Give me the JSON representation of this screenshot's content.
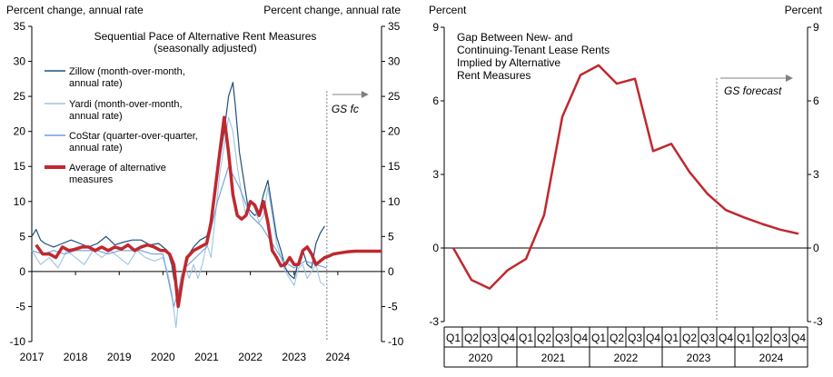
{
  "colors": {
    "zillow": "#1f4e79",
    "yardi": "#9dc3e6",
    "costar": "#6f9fd8",
    "average": "#c0282e",
    "forecast_line": "#808080",
    "axis": "#000000"
  },
  "chart_data": [
    {
      "id": "left",
      "type": "line",
      "title": "Sequential Pace of Alternative Rent Measures",
      "subtitle": "(seasonally adjusted)",
      "ylabel_left": "Percent change, annual rate",
      "ylabel_right": "Percent change, annual rate",
      "ylim": [
        -10,
        35
      ],
      "yticks": [
        -10,
        -5,
        0,
        5,
        10,
        15,
        20,
        25,
        30,
        35
      ],
      "xlim": [
        2017,
        2025
      ],
      "xticks": [
        2017,
        2018,
        2019,
        2020,
        2021,
        2022,
        2023,
        2024
      ],
      "forecast_x": 2023.75,
      "forecast_label": "GS fc",
      "series": [
        {
          "name": "Zillow (month-over-month,",
          "name2": "annual rate)",
          "key": "zillow",
          "x": [
            2017,
            2017.1,
            2017.2,
            2017.3,
            2017.5,
            2017.7,
            2017.9,
            2018.1,
            2018.3,
            2018.5,
            2018.7,
            2018.9,
            2019.1,
            2019.3,
            2019.5,
            2019.7,
            2019.9,
            2020.0,
            2020.1,
            2020.2,
            2020.25,
            2020.35,
            2020.5,
            2020.6,
            2020.7,
            2020.85,
            2021.0,
            2021.1,
            2021.2,
            2021.3,
            2021.4,
            2021.5,
            2021.55,
            2021.6,
            2021.65,
            2021.75,
            2021.85,
            2021.95,
            2022.1,
            2022.2,
            2022.3,
            2022.4,
            2022.5,
            2022.6,
            2022.7,
            2022.8,
            2022.9,
            2023.0,
            2023.1,
            2023.2,
            2023.3,
            2023.4,
            2023.5,
            2023.6,
            2023.7
          ],
          "values": [
            5,
            6,
            4.5,
            4,
            3.5,
            4,
            4.5,
            4,
            3.5,
            4,
            5,
            3.8,
            4.2,
            4.5,
            4.5,
            3.8,
            4,
            3.5,
            3,
            1,
            -1,
            -3,
            0,
            2.5,
            3.5,
            4.5,
            5,
            7,
            11,
            16,
            20,
            25,
            26,
            27,
            24,
            17,
            13,
            9,
            8,
            8.5,
            11,
            13,
            9,
            5,
            3,
            0.5,
            -0.5,
            -1,
            1.5,
            3,
            1,
            0.5,
            4,
            5.5,
            6.5
          ]
        },
        {
          "name": "Yardi (month-over-month,",
          "name2": "annual rate)",
          "key": "yardi",
          "x": [
            2017,
            2017.2,
            2017.4,
            2017.6,
            2017.8,
            2018.0,
            2018.2,
            2018.4,
            2018.6,
            2018.8,
            2019.0,
            2019.2,
            2019.4,
            2019.6,
            2019.8,
            2020.0,
            2020.1,
            2020.2,
            2020.3,
            2020.4,
            2020.5,
            2020.6,
            2020.7,
            2020.8,
            2020.9,
            2021.0,
            2021.1,
            2021.2,
            2021.3,
            2021.4,
            2021.5,
            2021.6,
            2021.7,
            2021.8,
            2021.9,
            2022.0,
            2022.1,
            2022.2,
            2022.3,
            2022.4,
            2022.5,
            2022.6,
            2022.7,
            2022.8,
            2022.9,
            2023.0,
            2023.1,
            2023.2,
            2023.3,
            2023.4,
            2023.5,
            2023.6,
            2023.7
          ],
          "values": [
            3,
            1,
            2,
            0.5,
            3,
            2,
            1,
            3,
            2,
            3,
            2,
            1,
            3,
            2,
            1.5,
            2,
            0,
            -3,
            -8,
            -1,
            1,
            -1,
            1,
            -1,
            1,
            4,
            2,
            8,
            14,
            18,
            22,
            20,
            15,
            11,
            8,
            10,
            9,
            7,
            8,
            12,
            8,
            4,
            2,
            0,
            -1,
            -2,
            0.5,
            1,
            -1,
            0,
            1,
            -1.5,
            -2
          ]
        },
        {
          "name": "CoStar (quarter-over-quarter,",
          "name2": "annual rate)",
          "key": "costar",
          "x": [
            2017,
            2017.25,
            2017.5,
            2017.75,
            2018,
            2018.25,
            2018.5,
            2018.75,
            2019,
            2019.25,
            2019.5,
            2019.75,
            2020,
            2020.25,
            2020.5,
            2020.75,
            2021,
            2021.25,
            2021.5,
            2021.75,
            2022,
            2022.25,
            2022.5,
            2022.75,
            2023,
            2023.25,
            2023.5,
            2023.75
          ],
          "values": [
            3,
            2.5,
            3,
            2.5,
            3,
            3,
            3,
            2.5,
            3,
            3,
            3,
            2.5,
            2.5,
            -5,
            0.5,
            2,
            3.5,
            10,
            15,
            12,
            8,
            6.5,
            4,
            1.5,
            0.5,
            1.5,
            1,
            0.5
          ]
        },
        {
          "name": "Average of alternative",
          "name2": "measures",
          "key": "average",
          "x": [
            2017.1,
            2017.25,
            2017.4,
            2017.55,
            2017.7,
            2017.85,
            2018.0,
            2018.15,
            2018.3,
            2018.45,
            2018.6,
            2018.75,
            2018.9,
            2019.05,
            2019.2,
            2019.35,
            2019.5,
            2019.65,
            2019.8,
            2019.95,
            2020.05,
            2020.15,
            2020.25,
            2020.35,
            2020.45,
            2020.55,
            2020.7,
            2020.85,
            2021.0,
            2021.1,
            2021.2,
            2021.3,
            2021.4,
            2021.5,
            2021.6,
            2021.7,
            2021.8,
            2021.9,
            2022.0,
            2022.1,
            2022.2,
            2022.3,
            2022.4,
            2022.5,
            2022.6,
            2022.7,
            2022.8,
            2022.9,
            2023.0,
            2023.1,
            2023.2,
            2023.3,
            2023.4,
            2023.5,
            2023.6,
            2023.7,
            2023.8,
            2023.9,
            2024.0,
            2024.2,
            2024.4,
            2024.6,
            2024.8,
            2025.0
          ],
          "values": [
            3.8,
            2.5,
            2.5,
            2,
            3.5,
            3,
            3.2,
            3.5,
            3.5,
            3,
            3.5,
            3,
            3.5,
            3.2,
            3.8,
            3,
            3.5,
            3.8,
            3.5,
            3,
            3,
            2.5,
            1,
            -5,
            -1,
            2,
            3,
            3.5,
            4,
            7,
            12,
            17,
            22,
            17,
            11,
            8,
            7.5,
            8,
            10,
            9.5,
            8,
            10,
            7,
            3,
            2,
            0.8,
            1,
            2,
            1,
            1,
            3,
            3.5,
            2.5,
            1,
            1.5,
            2,
            2.2,
            2.5,
            2.6,
            2.8,
            2.9,
            2.9,
            2.9,
            2.9
          ]
        }
      ]
    },
    {
      "id": "right",
      "type": "line",
      "title_lines": [
        "Gap Between New- and",
        "Continuing-Tenant  Lease Rents",
        "Implied by Alternative",
        "Rent Measures"
      ],
      "ylabel_left": "Percent",
      "ylabel_right": "Percent",
      "ylim": [
        -3,
        9
      ],
      "yticks": [
        -3,
        0,
        3,
        6,
        9
      ],
      "quarters": [
        "Q1",
        "Q2",
        "Q3",
        "Q4",
        "Q1",
        "Q2",
        "Q3",
        "Q4",
        "Q1",
        "Q2",
        "Q3",
        "Q4",
        "Q1",
        "Q2",
        "Q3",
        "Q4",
        "Q1",
        "Q2",
        "Q3",
        "Q4"
      ],
      "years": [
        "2020",
        "2021",
        "2022",
        "2023",
        "2024"
      ],
      "forecast_label": "GS forecast",
      "series": [
        {
          "name": "Gap",
          "key": "average",
          "values": [
            0,
            -1.3,
            -1.65,
            -0.9,
            -0.45,
            1.35,
            5.35,
            7.05,
            7.45,
            6.7,
            6.9,
            3.95,
            4.25,
            3.1,
            2.2,
            1.55,
            1.25,
            0.98,
            0.75,
            0.58
          ]
        }
      ]
    }
  ]
}
